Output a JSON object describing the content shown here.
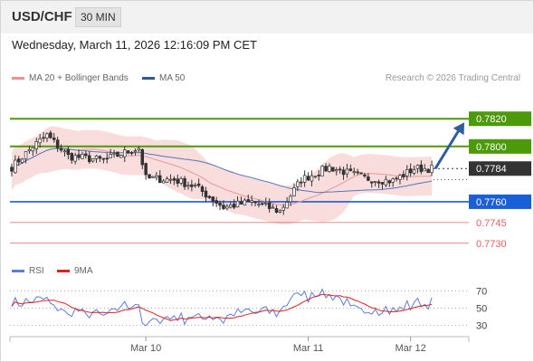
{
  "header": {
    "symbol": "USD/CHF",
    "timeframe": "30 MIN",
    "datetime": "Wednesday, March 11, 2026 12:16:09 PM CET"
  },
  "legend": {
    "bollinger_label": "MA 20 + Bollinger Bands",
    "ma50_label": "MA 50",
    "rsi_label": "RSI",
    "rsi_ma_label": "9MA",
    "credit": "Research © 2026 Trading Central"
  },
  "colors": {
    "candle": "#333333",
    "bollinger_fill": "#f7d0d0",
    "ma20": "#e89999",
    "ma50": "#5577bb",
    "resistance": "#4c9a0a",
    "pivot": "#1a5fd8",
    "support": "#e06060",
    "arrow": "#2f5c9e",
    "rsi": "#5b7fd8",
    "rsi_ma": "#dd2222",
    "current_price_bg": "#333333"
  },
  "chart_data": [
    {
      "type": "candlestick",
      "title": "USD/CHF",
      "ylim": [
        0.7722,
        0.7828
      ],
      "x_ticks": [
        {
          "label": "Mar 10",
          "index": 38
        },
        {
          "label": "Mar 11",
          "index": 84
        },
        {
          "label": "Mar 12",
          "index": 113
        }
      ],
      "current_price": {
        "label": "0.7784",
        "value": 0.7784
      },
      "levels": [
        {
          "label": "0.7820",
          "value": 0.782,
          "kind": "resistance"
        },
        {
          "label": "0.7800",
          "value": 0.78,
          "kind": "resistance"
        },
        {
          "label": "0.7760",
          "value": 0.776,
          "kind": "pivot"
        },
        {
          "label": "0.7745",
          "value": 0.7745,
          "kind": "support"
        },
        {
          "label": "0.7730",
          "value": 0.773,
          "kind": "support"
        }
      ],
      "forecast_arrow": {
        "from": 0.7784,
        "to": 0.782
      },
      "series": [
        {
          "name": "MA 20 + Bollinger Bands"
        },
        {
          "name": "MA 50"
        }
      ]
    },
    {
      "type": "line",
      "ylim": [
        20,
        80
      ],
      "y_ticks": [
        70,
        50,
        30
      ],
      "series": [
        {
          "name": "RSI"
        },
        {
          "name": "9MA"
        }
      ]
    }
  ]
}
